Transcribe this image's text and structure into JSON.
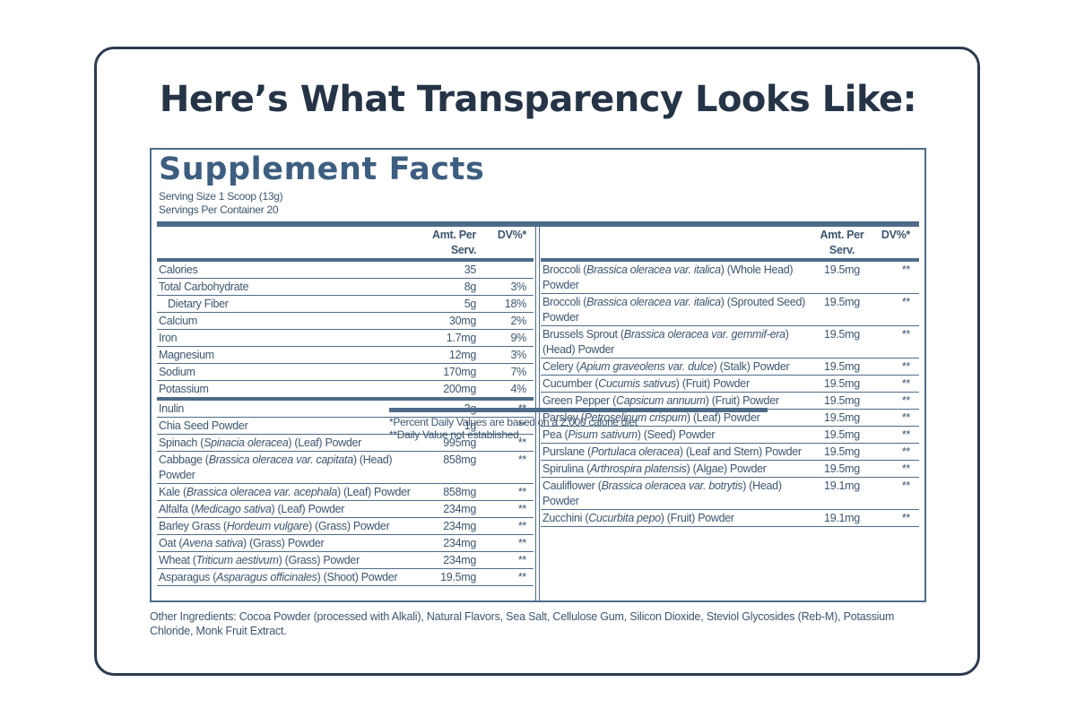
{
  "header": {
    "title": "Here’s What Transparency Looks Like:"
  },
  "label": {
    "title": "Supplement Facts",
    "serving_size": "Serving Size 1 Scoop (13g)",
    "servings": "Servings Per Container 20",
    "left": {
      "columns": [
        "Amt. Per Serv.",
        "DV%*"
      ],
      "groups": [
        [
          {
            "name": [
              "Calories"
            ],
            "amount": "35"
          },
          {
            "name": [
              "Total Carbohydrate"
            ],
            "amount": "8g",
            "dv": "3%"
          },
          {
            "name": [
              "Dietary Fiber"
            ],
            "amount": "5g",
            "dv": "18%",
            "indent": true
          },
          {
            "name": [
              "Calcium"
            ],
            "amount": "30mg",
            "dv": "2%"
          },
          {
            "name": [
              "Iron"
            ],
            "amount": "1.7mg",
            "dv": "9%"
          },
          {
            "name": [
              "Magnesium"
            ],
            "amount": "12mg",
            "dv": "3%"
          },
          {
            "name": [
              "Sodium"
            ],
            "amount": "170mg",
            "dv": "7%"
          },
          {
            "name": [
              "Potassium"
            ],
            "amount": "200mg",
            "dv": "4%"
          }
        ],
        [
          {
            "name": [
              "Inulin"
            ],
            "amount": "3g",
            "dv": "**"
          },
          {
            "name": [
              "Chia Seed Powder"
            ],
            "amount": "1g",
            "dv": "**"
          },
          {
            "name": [
              "Spinach (",
              "Spinacia oleracea",
              ") (Leaf) Powder"
            ],
            "amount": "995mg",
            "dv": "**"
          },
          {
            "name": [
              "Cabbage (",
              "Brassica oleracea var. capitata",
              ") (Head) Powder"
            ],
            "amount": "858mg",
            "dv": "**"
          },
          {
            "name": [
              "Kale (",
              "Brassica oleracea var. acephala",
              ") (Leaf) Powder"
            ],
            "amount": "858mg",
            "dv": "**"
          },
          {
            "name": [
              "Alfalfa (",
              "Medicago sativa",
              ") (Leaf) Powder"
            ],
            "amount": "234mg",
            "dv": "**"
          },
          {
            "name": [
              "Barley Grass (",
              "Hordeum vulgare",
              ") (Grass) Powder"
            ],
            "amount": "234mg",
            "dv": "**"
          },
          {
            "name": [
              "Oat (",
              "Avena sativa",
              ") (Grass) Powder"
            ],
            "amount": "234mg",
            "dv": "**"
          },
          {
            "name": [
              "Wheat (",
              "Triticum aestivum",
              ") (Grass) Powder"
            ],
            "amount": "234mg",
            "dv": "**"
          },
          {
            "name": [
              "Asparagus (",
              "Asparagus officinales",
              ") (Shoot) Powder"
            ],
            "amount": "19.5mg",
            "dv": "**"
          }
        ]
      ]
    },
    "right": {
      "columns": [
        "Amt. Per Serv.",
        "DV%*"
      ],
      "groups": [
        [
          {
            "name": [
              "Broccoli (",
              "Brassica oleracea var. italica",
              ") (Whole Head) Powder"
            ],
            "amount": "19.5mg",
            "dv": "**"
          },
          {
            "name": [
              "Broccoli (",
              "Brassica oleracea var. italica",
              ") (Sprouted Seed) Powder"
            ],
            "amount": "19.5mg",
            "dv": "**"
          },
          {
            "name": [
              "Brussels Sprout (",
              "Brassica oleracea var. gemmif-era",
              ") (Head) Powder"
            ],
            "amount": "19.5mg",
            "dv": "**"
          },
          {
            "name": [
              "Celery (",
              "Apium graveolens var. dulce",
              ") (Stalk) Powder"
            ],
            "amount": "19.5mg",
            "dv": "**"
          },
          {
            "name": [
              "Cucumber (",
              "Cucumis sativus",
              ") (Fruit) Powder"
            ],
            "amount": "19.5mg",
            "dv": "**"
          },
          {
            "name": [
              "Green Pepper (",
              "Capsicum annuum",
              ") (Fruit) Powder"
            ],
            "amount": "19.5mg",
            "dv": "**"
          },
          {
            "name": [
              "Parsley (",
              "Petroselinum crispum",
              ") (Leaf) Powder"
            ],
            "amount": "19.5mg",
            "dv": "**"
          },
          {
            "name": [
              "Pea (",
              "Pisum sativum",
              ") (Seed) Powder"
            ],
            "amount": "19.5mg",
            "dv": "**"
          },
          {
            "name": [
              "Purslane (",
              "Portulaca oleracea",
              ") (Leaf and Stem) Powder"
            ],
            "amount": "19.5mg",
            "dv": "**"
          },
          {
            "name": [
              "Spirulina (",
              "Arthrospira platensis",
              ") (Algae) Powder"
            ],
            "amount": "19.5mg",
            "dv": "**"
          },
          {
            "name": [
              "Cauliflower (",
              "Brassica oleracea var. botrytis",
              ") (Head) Powder"
            ],
            "amount": "19.1mg",
            "dv": "**"
          },
          {
            "name": [
              "Zucchini (",
              "Cucurbita pepo",
              ") (Fruit) Powder"
            ],
            "amount": "19.1mg",
            "dv": "**"
          }
        ]
      ],
      "footnotes": [
        "*Percent Daily Values are based on a 2,000 calorie diet",
        "**Daily Value not established."
      ]
    },
    "other_ingredients": "Other Ingredients: Cocoa Powder (processed with Alkali), Natural Flavors, Sea Salt, Cellulose Gum, Silicon Dioxide, Steviol Glycosides (Reb-M), Potassium Chloride, Monk Fruit Extract."
  }
}
